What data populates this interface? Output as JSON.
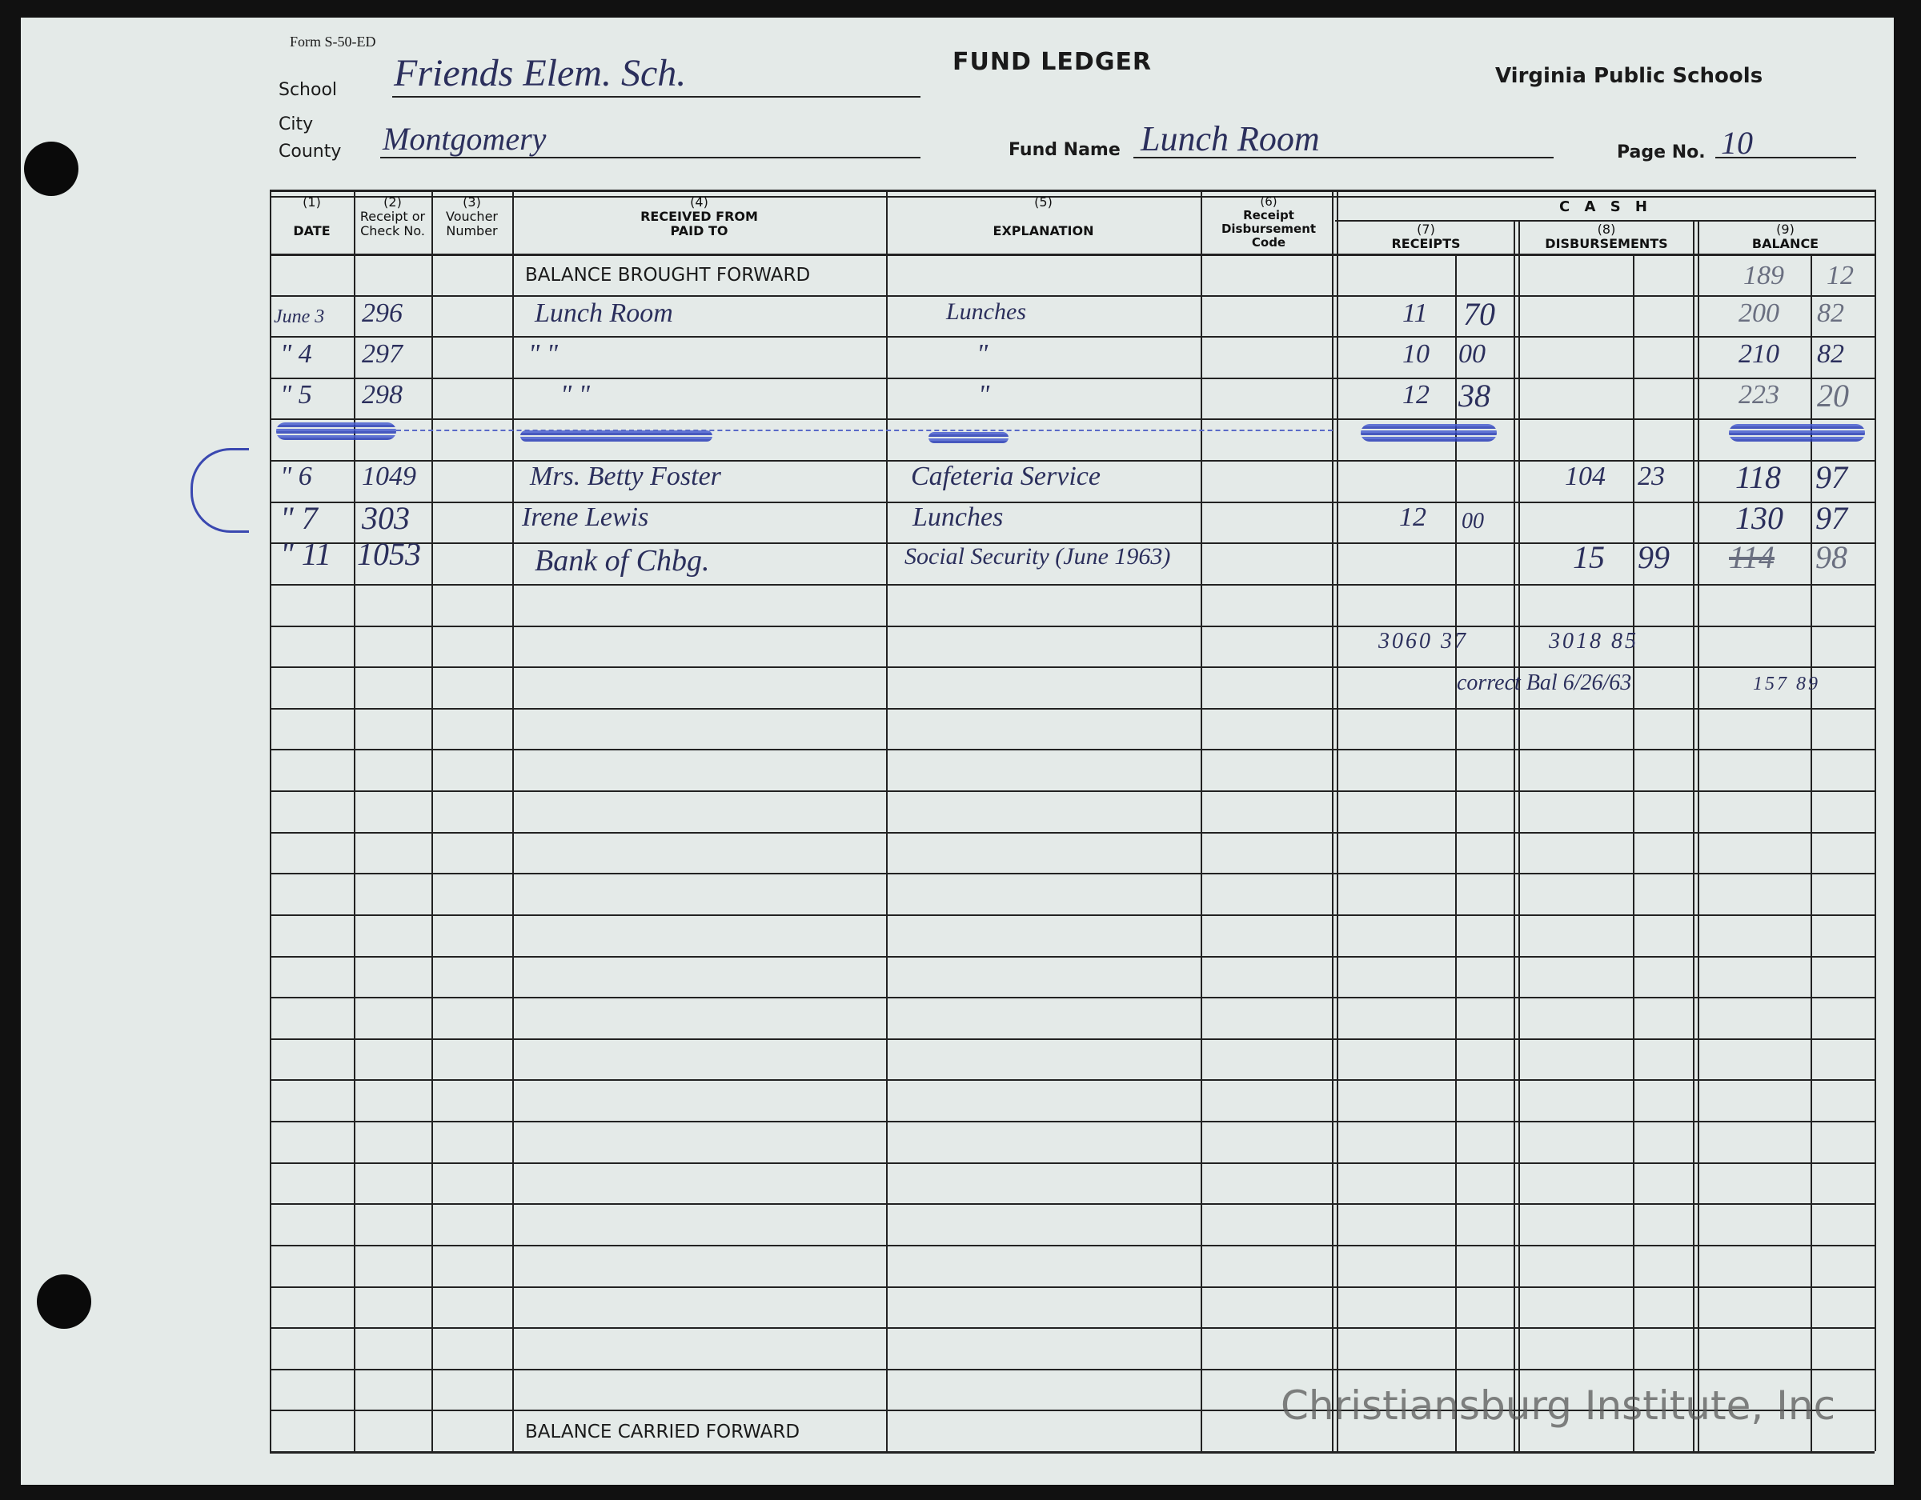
{
  "form": {
    "form_number": "Form S-50-ED",
    "title": "FUND LEDGER",
    "issuer": "Virginia Public Schools",
    "school_label": "School",
    "school_value": "Friends Elem. Sch.",
    "city_label": "City",
    "county_label": "County",
    "county_value": "Montgomery",
    "fund_name_label": "Fund Name",
    "fund_name_value": "Lunch Room",
    "page_no_label": "Page No.",
    "page_no_value": "10"
  },
  "columns": {
    "c1_num": "(1)",
    "c1": "DATE",
    "c2_num": "(2)",
    "c2": "Receipt or Check No.",
    "c3_num": "(3)",
    "c3": "Voucher Number",
    "c4_num": "(4)",
    "c4a": "RECEIVED FROM",
    "c4b": "PAID TO",
    "c5_num": "(5)",
    "c5": "EXPLANATION",
    "c6_num": "(6)",
    "c6": "Receipt Disbursement Code",
    "cash": "C A S H",
    "c7_num": "(7)",
    "c7": "RECEIPTS",
    "c8_num": "(8)",
    "c8": "DISBURSEMENTS",
    "c9_num": "(9)",
    "c9": "BALANCE"
  },
  "balance_brought_forward": "BALANCE BROUGHT FORWARD",
  "balance_carried_forward": "BALANCE CARRIED FORWARD",
  "opening_balance": {
    "dollars": "189",
    "cents": "12"
  },
  "entries": [
    {
      "date": "June 3",
      "check_no": "296",
      "party": "Lunch Room",
      "explanation": "Lunches",
      "rec_d": "11",
      "rec_c": "70",
      "dis_d": "",
      "dis_c": "",
      "bal_d": "200",
      "bal_c": "82"
    },
    {
      "date": "\" 4",
      "check_no": "297",
      "party": "\"      \"",
      "explanation": "\"",
      "rec_d": "10",
      "rec_c": "00",
      "dis_d": "",
      "dis_c": "",
      "bal_d": "210",
      "bal_c": "82"
    },
    {
      "date": "\" 5",
      "check_no": "298",
      "party": "\"      \"",
      "explanation": "\"",
      "rec_d": "12",
      "rec_c": "38",
      "dis_d": "",
      "dis_c": "",
      "bal_d": "223",
      "bal_c": "20"
    },
    {
      "date": "\" 6",
      "check_no": "1049",
      "party": "Mrs. Betty Foster",
      "explanation": "Cafeteria Service",
      "rec_d": "",
      "rec_c": "",
      "dis_d": "104",
      "dis_c": "23",
      "bal_d": "118",
      "bal_c": "97"
    },
    {
      "date": "\" 7",
      "check_no": "303",
      "party": "Irene Lewis",
      "explanation": "Lunches",
      "rec_d": "12",
      "rec_c": "00",
      "dis_d": "",
      "dis_c": "",
      "bal_d": "130",
      "bal_c": "97"
    },
    {
      "date": "\" 11",
      "check_no": "1053",
      "party": "Bank of Chbg.",
      "explanation": "Social Security (June 1963)",
      "rec_d": "",
      "rec_c": "",
      "dis_d": "15",
      "dis_c": "99",
      "bal_d": "114",
      "bal_c": "98"
    }
  ],
  "totals": {
    "receipts": "3060 37",
    "disbursements": "3018 85"
  },
  "correction": {
    "label": "correct Bal 6/26/63",
    "value": "157 89"
  },
  "watermark": "Christiansburg Institute, Inc",
  "colors": {
    "ink": "#2b2f5c",
    "scribble": "#2b3fb8",
    "paper": "#e4eae8"
  }
}
